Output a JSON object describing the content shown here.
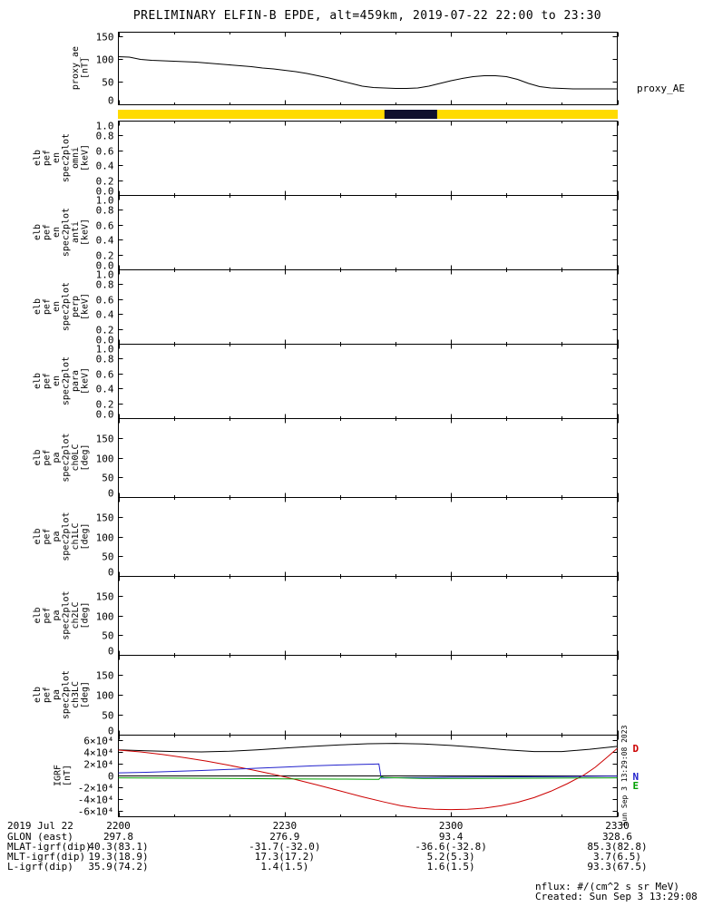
{
  "title": "PRELIMINARY ELFIN-B EPDE, alt=459km, 2019-07-22 22:00 to 23:30",
  "right_labels": {
    "proxy": "proxy_AE"
  },
  "side_note": "Sun Sep  3 13:29:08 2023",
  "x_axis": {
    "min": 0,
    "max": 90,
    "ticks": [
      {
        "v": 0,
        "label": "2200"
      },
      {
        "v": 30,
        "label": "2230"
      },
      {
        "v": 60,
        "label": "2300"
      },
      {
        "v": 90,
        "label": "2330"
      }
    ]
  },
  "chart_data": [
    {
      "type": "line",
      "name": "proxy-ae",
      "ylabel_lines": [
        "proxy_ae",
        "[nT]"
      ],
      "ylim": [
        0,
        160
      ],
      "yticks": [
        {
          "v": 0,
          "label": "0"
        },
        {
          "v": 50,
          "label": "50"
        },
        {
          "v": 100,
          "label": "100"
        },
        {
          "v": 150,
          "label": "150"
        }
      ],
      "series": [
        {
          "name": "proxy_AE",
          "color": "#000000",
          "x": [
            0,
            2,
            4,
            6,
            8,
            10,
            12,
            14,
            16,
            18,
            20,
            22,
            24,
            26,
            28,
            30,
            32,
            34,
            36,
            38,
            40,
            42,
            44,
            46,
            48,
            50,
            52,
            54,
            56,
            58,
            60,
            62,
            64,
            66,
            68,
            70,
            72,
            74,
            76,
            78,
            80,
            82,
            84,
            86,
            88,
            90
          ],
          "y": [
            105,
            104,
            99,
            97,
            96,
            95,
            94,
            93,
            91,
            89,
            87,
            85,
            83,
            80,
            78,
            75,
            72,
            68,
            63,
            58,
            52,
            46,
            40,
            37,
            36,
            35,
            35,
            36,
            40,
            46,
            52,
            57,
            61,
            63,
            63,
            61,
            55,
            46,
            39,
            36,
            35,
            34,
            34,
            34,
            34,
            34
          ]
        }
      ]
    },
    {
      "type": "indicator-bar",
      "name": "data-availability-bar",
      "bg_color": "#ffdb00",
      "segments": [
        {
          "start": 48,
          "end": 57.5,
          "color": "#10102e"
        }
      ]
    },
    {
      "type": "empty-spectrogram",
      "name": "elb-pef-en-spec2plot-omni",
      "ylabel_lines": [
        "elb",
        "pef",
        "en",
        "spec2plot",
        "omni",
        "[keV]"
      ],
      "ylim": [
        0,
        1
      ],
      "yticks": [
        {
          "v": 0,
          "label": "0.0"
        },
        {
          "v": 0.2,
          "label": "0.2"
        },
        {
          "v": 0.4,
          "label": "0.4"
        },
        {
          "v": 0.6,
          "label": "0.6"
        },
        {
          "v": 0.8,
          "label": "0.8"
        },
        {
          "v": 1,
          "label": "1.0"
        }
      ]
    },
    {
      "type": "empty-spectrogram",
      "name": "elb-pef-en-spec2plot-anti",
      "ylabel_lines": [
        "elb",
        "pef",
        "en",
        "spec2plot",
        "anti",
        "[keV]"
      ],
      "ylim": [
        0,
        1
      ],
      "yticks": [
        {
          "v": 0,
          "label": "0.0"
        },
        {
          "v": 0.2,
          "label": "0.2"
        },
        {
          "v": 0.4,
          "label": "0.4"
        },
        {
          "v": 0.6,
          "label": "0.6"
        },
        {
          "v": 0.8,
          "label": "0.8"
        },
        {
          "v": 1,
          "label": "1.0"
        }
      ]
    },
    {
      "type": "empty-spectrogram",
      "name": "elb-pef-en-spec2plot-perp",
      "ylabel_lines": [
        "elb",
        "pef",
        "en",
        "spec2plot",
        "perp",
        "[keV]"
      ],
      "ylim": [
        0,
        1
      ],
      "yticks": [
        {
          "v": 0,
          "label": "0.0"
        },
        {
          "v": 0.2,
          "label": "0.2"
        },
        {
          "v": 0.4,
          "label": "0.4"
        },
        {
          "v": 0.6,
          "label": "0.6"
        },
        {
          "v": 0.8,
          "label": "0.8"
        },
        {
          "v": 1,
          "label": "1.0"
        }
      ]
    },
    {
      "type": "empty-spectrogram",
      "name": "elb-pef-en-spec2plot-para",
      "ylabel_lines": [
        "elb",
        "pef",
        "en",
        "spec2plot",
        "para",
        "[keV]"
      ],
      "ylim": [
        0,
        1
      ],
      "yticks": [
        {
          "v": 0,
          "label": "0.0"
        },
        {
          "v": 0.2,
          "label": "0.2"
        },
        {
          "v": 0.4,
          "label": "0.4"
        },
        {
          "v": 0.6,
          "label": "0.6"
        },
        {
          "v": 0.8,
          "label": "0.8"
        },
        {
          "v": 1,
          "label": "1.0"
        }
      ]
    },
    {
      "type": "empty-spectrogram",
      "name": "elb-pef-pa-spec2plot-ch0LC",
      "ylabel_lines": [
        "elb",
        "pef",
        "pa",
        "spec2plot",
        "ch0LC",
        "[deg]"
      ],
      "ylim": [
        0,
        200
      ],
      "yticks": [
        {
          "v": 0,
          "label": "0"
        },
        {
          "v": 50,
          "label": "50"
        },
        {
          "v": 100,
          "label": "100"
        },
        {
          "v": 150,
          "label": "150"
        }
      ]
    },
    {
      "type": "empty-spectrogram",
      "name": "elb-pef-pa-spec2plot-ch1LC",
      "ylabel_lines": [
        "elb",
        "pef",
        "pa",
        "spec2plot",
        "ch1LC",
        "[deg]"
      ],
      "ylim": [
        0,
        200
      ],
      "yticks": [
        {
          "v": 0,
          "label": "0"
        },
        {
          "v": 50,
          "label": "50"
        },
        {
          "v": 100,
          "label": "100"
        },
        {
          "v": 150,
          "label": "150"
        }
      ]
    },
    {
      "type": "empty-spectrogram",
      "name": "elb-pef-pa-spec2plot-ch2LC",
      "ylabel_lines": [
        "elb",
        "pef",
        "pa",
        "spec2plot",
        "ch2LC",
        "[deg]"
      ],
      "ylim": [
        0,
        200
      ],
      "yticks": [
        {
          "v": 0,
          "label": "0"
        },
        {
          "v": 50,
          "label": "50"
        },
        {
          "v": 100,
          "label": "100"
        },
        {
          "v": 150,
          "label": "150"
        }
      ]
    },
    {
      "type": "empty-spectrogram",
      "name": "elb-pef-pa-spec2plot-ch3LC",
      "ylabel_lines": [
        "elb",
        "pef",
        "pa",
        "spec2plot",
        "ch3LC",
        "[deg]"
      ],
      "ylim": [
        0,
        200
      ],
      "yticks": [
        {
          "v": 0,
          "label": "0"
        },
        {
          "v": 50,
          "label": "50"
        },
        {
          "v": 100,
          "label": "100"
        },
        {
          "v": 150,
          "label": "150"
        }
      ]
    },
    {
      "type": "line",
      "name": "igrf",
      "ylabel_lines": [
        "IGRF",
        "[nT]"
      ],
      "ylim": [
        -70000,
        70000
      ],
      "yticks": [
        {
          "v": 60000,
          "label": "6×10⁴"
        },
        {
          "v": 40000,
          "label": "4×10⁴"
        },
        {
          "v": 20000,
          "label": "2×10⁴"
        },
        {
          "v": 0,
          "label": "0"
        },
        {
          "v": -20000,
          "label": "-2×10⁴"
        },
        {
          "v": -40000,
          "label": "-4×10⁴"
        },
        {
          "v": -60000,
          "label": "-6×10⁴"
        }
      ],
      "series": [
        {
          "name": "btotal",
          "color": "#000000",
          "x": [
            0,
            5,
            10,
            15,
            20,
            25,
            30,
            35,
            40,
            45,
            50,
            55,
            60,
            65,
            70,
            75,
            80,
            85,
            90
          ],
          "y": [
            44000,
            42500,
            41000,
            40500,
            41500,
            44000,
            47000,
            50000,
            52500,
            54500,
            55000,
            54000,
            51500,
            48000,
            44000,
            41000,
            41000,
            45000,
            50000
          ]
        },
        {
          "name": "D",
          "color": "#cc0000",
          "x": [
            0,
            4,
            8,
            12,
            16,
            20,
            24,
            28,
            32,
            36,
            40,
            44,
            48,
            51,
            54,
            57,
            60,
            63,
            66,
            69,
            72,
            75,
            78,
            81,
            84,
            86,
            88,
            90
          ],
          "y": [
            43500,
            40500,
            36000,
            30500,
            24500,
            17500,
            10000,
            2000,
            -7000,
            -16500,
            -26500,
            -36500,
            -45500,
            -52000,
            -56000,
            -58000,
            -58500,
            -58000,
            -56000,
            -52000,
            -46000,
            -38000,
            -27000,
            -14000,
            1000,
            14000,
            30000,
            46500
          ]
        },
        {
          "name": "N",
          "color": "#2222cc",
          "x": [
            0,
            5,
            10,
            15,
            20,
            25,
            30,
            35,
            40,
            44,
            46,
            47,
            47.4,
            48,
            52,
            56,
            60,
            64,
            68,
            72,
            76,
            80,
            84,
            88,
            90
          ],
          "y": [
            4500,
            5500,
            7000,
            8500,
            10500,
            12500,
            14500,
            16500,
            18000,
            19000,
            19500,
            19800,
            -4500,
            -4200,
            -3800,
            -3400,
            -3000,
            -2800,
            -2500,
            -2300,
            -2100,
            -1900,
            -1600,
            -1300,
            -1200
          ]
        },
        {
          "name": "E",
          "color": "#00a000",
          "x": [
            0,
            10,
            20,
            30,
            40,
            46,
            47,
            47.4,
            48,
            55,
            65,
            75,
            85,
            90
          ],
          "y": [
            -4000,
            -4500,
            -5200,
            -5800,
            -6300,
            -6500,
            -6600,
            -2000,
            -3500,
            -5200,
            -5000,
            -4600,
            -4200,
            -4000
          ]
        }
      ],
      "right_line_labels": [
        {
          "text": "D",
          "color": "#cc0000",
          "v": 46500
        },
        {
          "text": "N",
          "color": "#2222cc",
          "v": -1200
        },
        {
          "text": "E",
          "color": "#00a000",
          "v": -4500
        }
      ]
    }
  ],
  "footer": {
    "date_label": "2019 Jul 22",
    "rows": [
      {
        "label": "GLON (east)",
        "values": [
          "297.8",
          "276.9",
          "93.4",
          "328.6"
        ]
      },
      {
        "label": "MLAT-igrf(dip)",
        "values": [
          "40.3(83.1)",
          "-31.7(-32.0)",
          "-36.6(-32.8)",
          "85.3(82.8)"
        ]
      },
      {
        "label": "MLT-igrf(dip)",
        "values": [
          "19.3(18.9)",
          "17.3(17.2)",
          "5.2(5.3)",
          "3.7(6.5)"
        ]
      },
      {
        "label": "L-igrf(dip)",
        "values": [
          "35.9(74.2)",
          "1.4(1.5)",
          "1.6(1.5)",
          "93.3(67.5)"
        ]
      }
    ],
    "notes": [
      "nflux: #/(cm^2 s sr MeV)",
      "Created: Sun Sep  3 13:29:08 2023"
    ]
  }
}
